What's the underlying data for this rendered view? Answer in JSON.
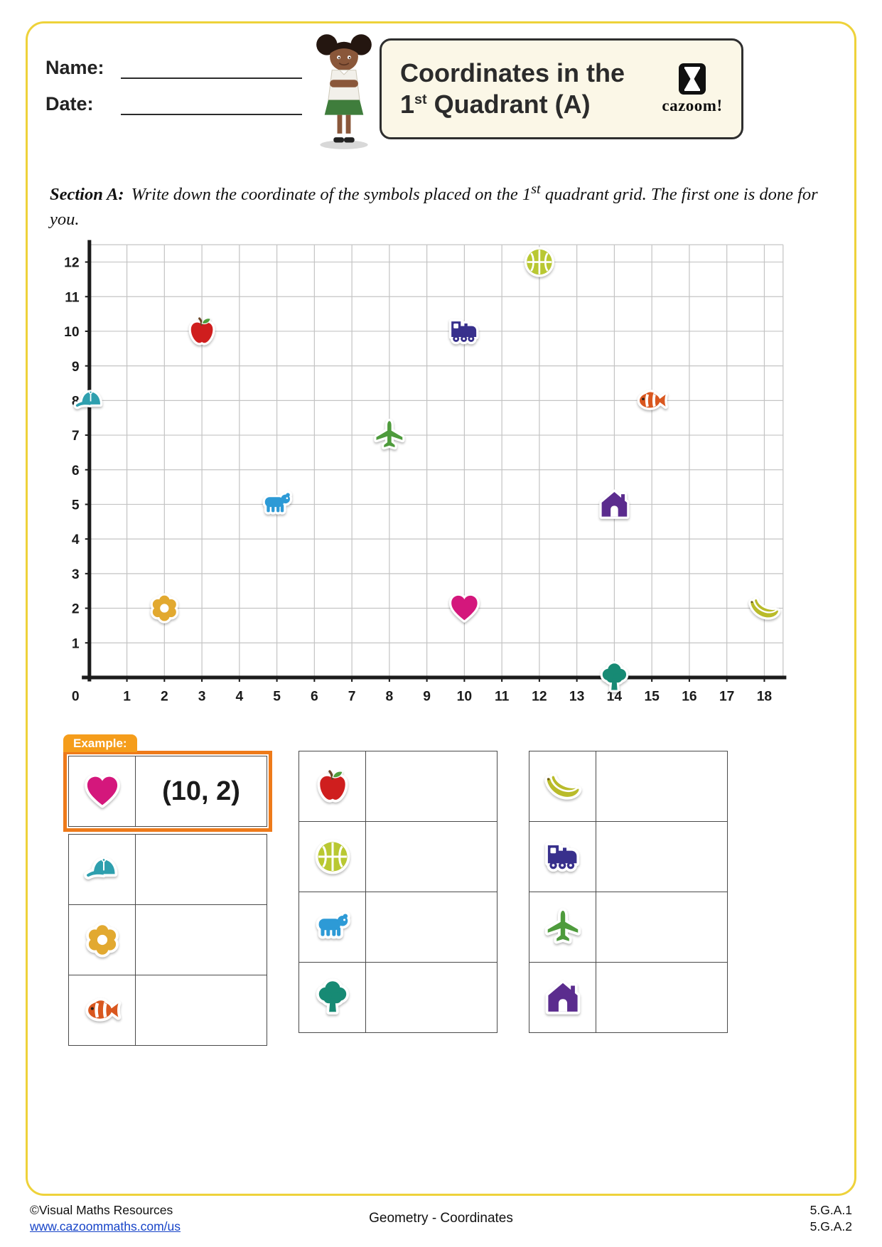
{
  "page": {
    "frame_color": "#eed23a"
  },
  "header": {
    "name_label": "Name:",
    "date_label": "Date:",
    "title_line1": "Coordinates in the",
    "title_num": "1",
    "title_sup": "st",
    "title_rest": " Quadrant (A)",
    "logo_text": "cazoom!"
  },
  "section_a": {
    "label": "Section A:",
    "instr_pre": "Write down the coordinate of the symbols placed on the 1",
    "instr_sup": "st",
    "instr_post": " quadrant grid. The first one is done for you."
  },
  "chart_data": {
    "type": "scatter",
    "title": "",
    "xlabel": "",
    "ylabel": "",
    "x_range": [
      0,
      18.5
    ],
    "y_range": [
      0,
      12.5
    ],
    "x_ticks": [
      0,
      1,
      2,
      3,
      4,
      5,
      6,
      7,
      8,
      9,
      10,
      11,
      12,
      13,
      14,
      15,
      16,
      17,
      18
    ],
    "y_ticks": [
      0,
      1,
      2,
      3,
      4,
      5,
      6,
      7,
      8,
      9,
      10,
      11,
      12
    ],
    "grid": true,
    "points": [
      {
        "icon": "basketball",
        "x": 12,
        "y": 12
      },
      {
        "icon": "apple",
        "x": 3,
        "y": 10
      },
      {
        "icon": "train",
        "x": 10,
        "y": 10
      },
      {
        "icon": "cap",
        "x": 0,
        "y": 8
      },
      {
        "icon": "clownfish",
        "x": 15,
        "y": 8
      },
      {
        "icon": "airplane",
        "x": 8,
        "y": 7
      },
      {
        "icon": "bear",
        "x": 5,
        "y": 5
      },
      {
        "icon": "house",
        "x": 14,
        "y": 5
      },
      {
        "icon": "flower",
        "x": 2,
        "y": 2
      },
      {
        "icon": "heart",
        "x": 10,
        "y": 2
      },
      {
        "icon": "banana",
        "x": 18,
        "y": 2
      },
      {
        "icon": "tree",
        "x": 14,
        "y": 0
      }
    ]
  },
  "icon_colors": {
    "heart": "#d4177c",
    "apple": "#cf1e1e",
    "basketball": "#b9c832",
    "train": "#38308c",
    "cap": "#2e9fae",
    "clownfish": "#d9571f",
    "airplane": "#4e9b3c",
    "bear": "#2d9ad6",
    "house": "#5b2c8e",
    "flower": "#e2a930",
    "banana": "#b9bb2a",
    "tree": "#178a74"
  },
  "answer_tables": {
    "example_label": "Example:",
    "columns": [
      {
        "rows": [
          {
            "icon": "heart",
            "answer": "(10, 2)",
            "example": true
          },
          {
            "icon": "cap",
            "answer": ""
          },
          {
            "icon": "flower",
            "answer": ""
          },
          {
            "icon": "clownfish",
            "answer": ""
          }
        ]
      },
      {
        "rows": [
          {
            "icon": "apple",
            "answer": ""
          },
          {
            "icon": "basketball",
            "answer": ""
          },
          {
            "icon": "bear",
            "answer": ""
          },
          {
            "icon": "tree",
            "answer": ""
          }
        ]
      },
      {
        "rows": [
          {
            "icon": "banana",
            "answer": ""
          },
          {
            "icon": "train",
            "answer": ""
          },
          {
            "icon": "airplane",
            "answer": ""
          },
          {
            "icon": "house",
            "answer": ""
          }
        ]
      }
    ]
  },
  "footer": {
    "copyright": "©Visual Maths Resources",
    "url": "www.cazoommaths.com/us",
    "center": "Geometry - Coordinates",
    "standards": [
      "5.G.A.1",
      "5.G.A.2"
    ]
  }
}
